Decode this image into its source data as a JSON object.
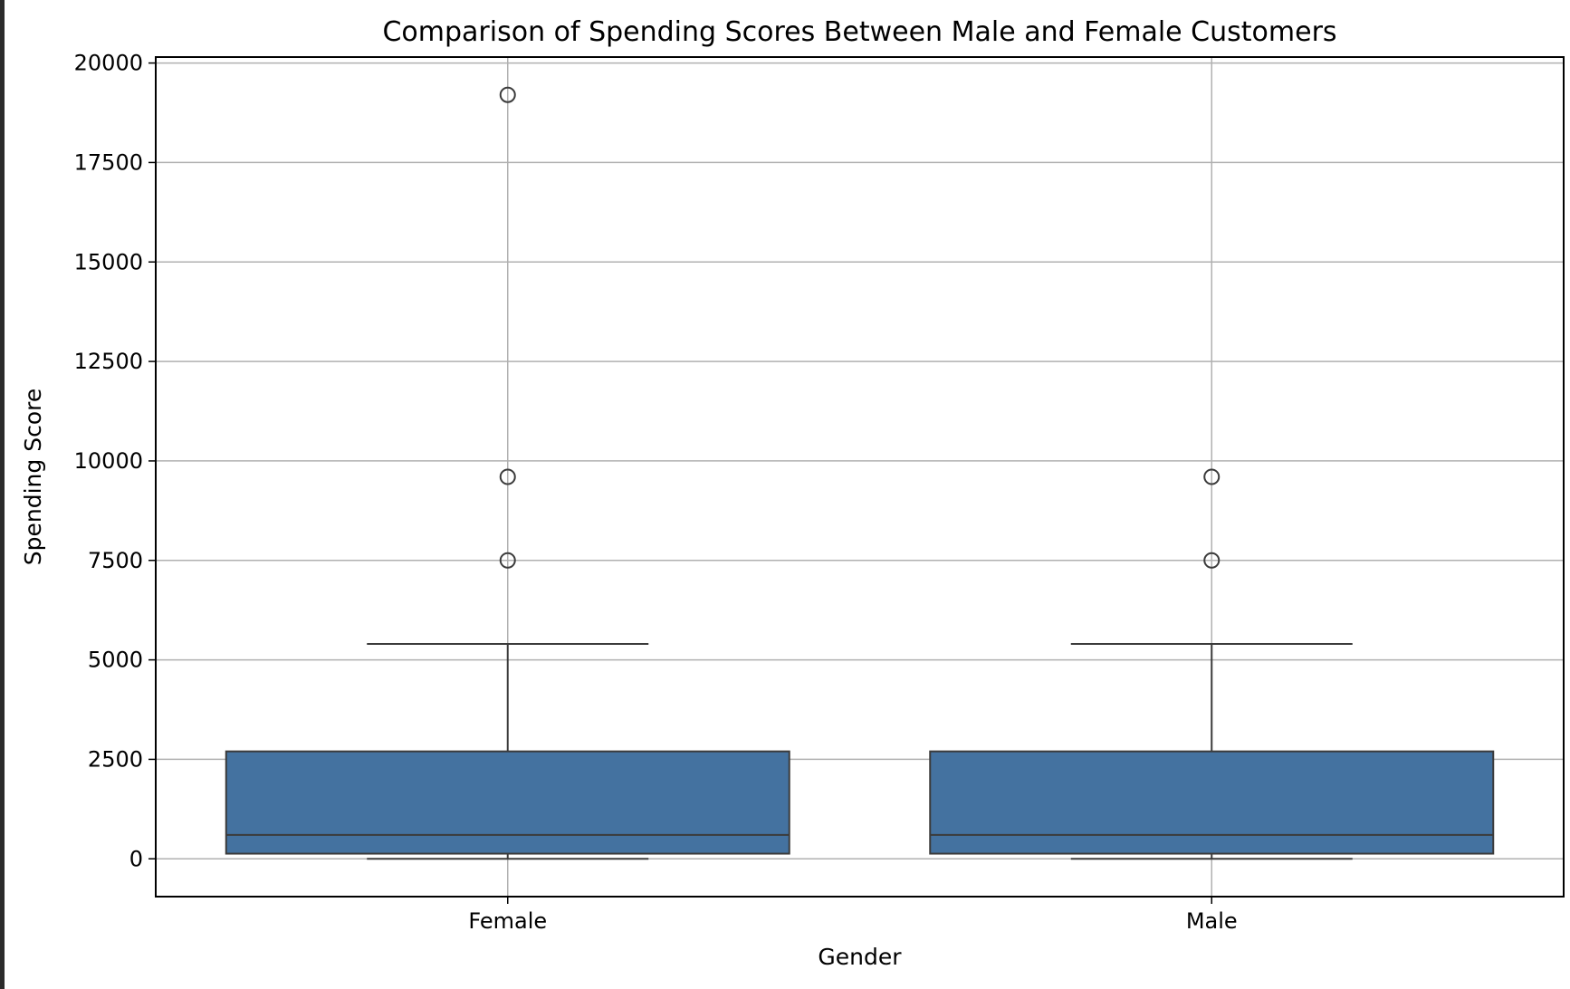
{
  "chart_data": {
    "type": "box",
    "title": "Comparison of Spending Scores Between Male and Female Customers",
    "xlabel": "Gender",
    "ylabel": "Spending Score",
    "ylim": [
      -950,
      20150
    ],
    "yticks": [
      0,
      2500,
      5000,
      7500,
      10000,
      12500,
      15000,
      17500,
      20000
    ],
    "grid": true,
    "box_color": "#4472a0",
    "line_color": "#3b3b3b",
    "categories": [
      "Female",
      "Male"
    ],
    "series": [
      {
        "category": "Female",
        "whisker_low": 0,
        "q1": 130,
        "median": 600,
        "q3": 2700,
        "whisker_high": 5400,
        "outliers": [
          7500,
          9600,
          19200
        ]
      },
      {
        "category": "Male",
        "whisker_low": 0,
        "q1": 130,
        "median": 600,
        "q3": 2700,
        "whisker_high": 5400,
        "outliers": [
          7500,
          9600
        ]
      }
    ]
  }
}
